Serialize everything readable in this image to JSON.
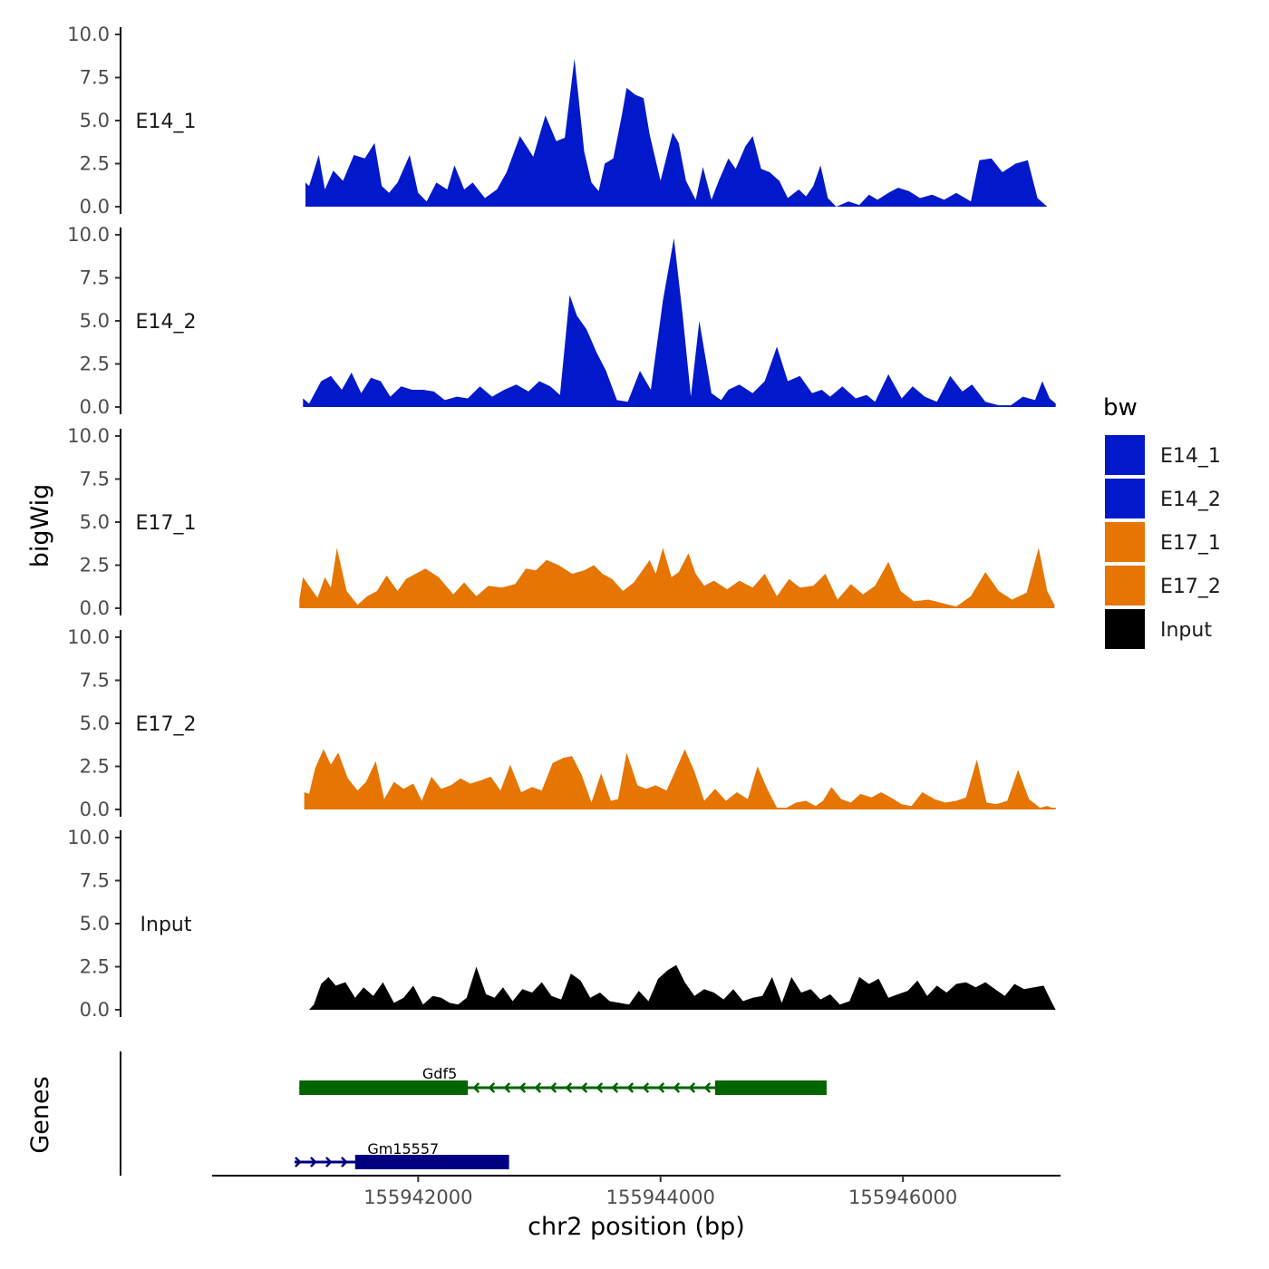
{
  "chart_data": {
    "type": "area",
    "title": "",
    "xlabel": "chr2 position (bp)",
    "ylabel": "bigWig",
    "genes_label": "Genes",
    "xlim": [
      155940300,
      155947300
    ],
    "x_ticks": [
      155942000,
      155944000,
      155946000
    ],
    "x_tick_labels": [
      "155942000",
      "155944000",
      "155946000"
    ],
    "ylim": [
      0,
      10
    ],
    "y_ticks": [
      0,
      2.5,
      5,
      7.5,
      10
    ],
    "y_tick_labels": [
      "0.0",
      "2.5",
      "5.0",
      "7.5",
      "10.0"
    ],
    "legend": {
      "title": "bw",
      "position": "right",
      "entries": [
        {
          "label": "E14_1",
          "color": "#0219CB"
        },
        {
          "label": "E14_2",
          "color": "#0219CB"
        },
        {
          "label": "E17_1",
          "color": "#E67502"
        },
        {
          "label": "E17_2",
          "color": "#E67502"
        },
        {
          "label": "Input",
          "color": "#000000"
        }
      ]
    },
    "series": [
      {
        "name": "E14_1",
        "color": "#0219CB",
        "x": [
          155941070,
          155941100,
          155941180,
          155941230,
          155941300,
          155941380,
          155941470,
          155941560,
          155941640,
          155941700,
          155941760,
          155941830,
          155941930,
          155942000,
          155942070,
          155942150,
          155942240,
          155942300,
          155942380,
          155942450,
          155942550,
          155942650,
          155942730,
          155942840,
          155942950,
          155943050,
          155943140,
          155943210,
          155943290,
          155943370,
          155943430,
          155943490,
          155943540,
          155943610,
          155943680,
          155943720,
          155943790,
          155943860,
          155943910,
          155944000,
          155944100,
          155944150,
          155944210,
          155944290,
          155944350,
          155944420,
          155944480,
          155944560,
          155944620,
          155944700,
          155944760,
          155944830,
          155944900,
          155944980,
          155945050,
          155945140,
          155945200,
          155945260,
          155945320,
          155945380,
          155945450,
          155945550,
          155945640,
          155945720,
          155945790,
          155945880,
          155945960,
          155946050,
          155946140,
          155946240,
          155946340,
          155946440,
          155946560,
          155946630,
          155946730,
          155946820,
          155946930,
          155947030,
          155947110,
          155947190,
          155947230,
          155947260
        ],
        "values": [
          1.4,
          1.2,
          3.0,
          1.0,
          2.1,
          1.5,
          3.0,
          2.8,
          3.7,
          1.2,
          0.8,
          1.4,
          3.0,
          0.8,
          0.3,
          1.4,
          1.0,
          2.4,
          1.0,
          1.4,
          0.5,
          1.0,
          2.0,
          4.1,
          2.9,
          5.3,
          3.8,
          4.0,
          8.6,
          3.2,
          1.4,
          0.9,
          2.5,
          2.8,
          5.3,
          6.9,
          6.5,
          6.3,
          4.2,
          1.5,
          4.3,
          3.7,
          1.5,
          0.4,
          2.3,
          0.4,
          1.5,
          2.8,
          2.2,
          3.5,
          4.1,
          2.2,
          2.0,
          1.5,
          0.5,
          1.0,
          0.6,
          1.2,
          2.4,
          0.5,
          0.0,
          0.3,
          0.1,
          0.7,
          0.4,
          0.8,
          1.1,
          0.9,
          0.5,
          0.7,
          0.4,
          0.8,
          0.3,
          2.7,
          2.8,
          2.0,
          2.5,
          2.7,
          0.5,
          0.0,
          0.0,
          0.0
        ]
      },
      {
        "name": "E14_2",
        "color": "#0219CB",
        "x": [
          155941050,
          155941100,
          155941200,
          155941280,
          155941370,
          155941450,
          155941530,
          155941610,
          155941690,
          155941770,
          155941860,
          155941950,
          155942040,
          155942130,
          155942220,
          155942320,
          155942410,
          155942510,
          155942610,
          155942710,
          155942810,
          155942910,
          155943000,
          155943090,
          155943170,
          155943250,
          155943310,
          155943390,
          155943470,
          155943550,
          155943640,
          155943730,
          155943830,
          155943920,
          155944020,
          155944110,
          155944180,
          155944250,
          155944320,
          155944420,
          155944500,
          155944560,
          155944650,
          155944760,
          155944860,
          155944960,
          155945050,
          155945150,
          155945250,
          155945330,
          155945400,
          155945500,
          155945610,
          155945700,
          155945770,
          155945880,
          155945990,
          155946080,
          155946180,
          155946280,
          155946390,
          155946490,
          155946570,
          155946680,
          155946790,
          155946890,
          155946990,
          155947090,
          155947150,
          155947210,
          155947260
        ],
        "values": [
          0.5,
          0.2,
          1.5,
          1.8,
          1.0,
          2.0,
          0.8,
          1.7,
          1.5,
          0.6,
          1.2,
          1.0,
          1.0,
          0.9,
          0.4,
          0.6,
          0.5,
          1.2,
          0.6,
          1.0,
          1.3,
          0.9,
          1.5,
          1.2,
          0.7,
          6.5,
          5.3,
          4.5,
          3.2,
          2.1,
          0.4,
          0.3,
          2.1,
          1.0,
          6.2,
          9.8,
          5.5,
          0.6,
          5.0,
          0.8,
          0.4,
          1.0,
          1.3,
          0.8,
          1.5,
          3.5,
          1.5,
          1.8,
          0.8,
          1.0,
          0.6,
          1.2,
          0.5,
          0.7,
          0.3,
          1.9,
          0.5,
          1.2,
          0.6,
          0.3,
          1.8,
          0.9,
          1.3,
          0.3,
          0.1,
          0.1,
          0.6,
          0.4,
          1.5,
          0.5,
          0.2
        ]
      },
      {
        "name": "E17_1",
        "color": "#E67502",
        "x": [
          155941020,
          155941050,
          155941110,
          155941170,
          155941230,
          155941280,
          155941330,
          155941410,
          155941500,
          155941580,
          155941660,
          155941740,
          155941830,
          155941900,
          155941980,
          155942060,
          155942170,
          155942290,
          155942380,
          155942480,
          155942580,
          155942690,
          155942800,
          155942890,
          155942970,
          155943060,
          155943160,
          155943270,
          155943370,
          155943450,
          155943520,
          155943600,
          155943690,
          155943780,
          155943850,
          155943910,
          155943960,
          155944020,
          155944090,
          155944150,
          155944230,
          155944290,
          155944360,
          155944440,
          155944550,
          155944650,
          155944760,
          155944860,
          155944960,
          155945060,
          155945150,
          155945260,
          155945360,
          155945460,
          155945570,
          155945670,
          155945770,
          155945880,
          155945980,
          155946090,
          155946210,
          155946320,
          155946440,
          155946560,
          155946680,
          155946790,
          155946900,
          155947020,
          155947120,
          155947190,
          155947250
        ],
        "values": [
          0.5,
          1.8,
          1.2,
          0.6,
          1.8,
          1.2,
          3.5,
          1.0,
          0.2,
          0.7,
          1.0,
          1.9,
          1.0,
          1.7,
          2.0,
          2.3,
          1.8,
          0.8,
          1.5,
          0.7,
          1.3,
          1.2,
          1.4,
          2.3,
          2.2,
          2.8,
          2.5,
          2.0,
          2.2,
          2.5,
          2.0,
          1.7,
          1.0,
          1.5,
          2.2,
          2.8,
          2.0,
          3.5,
          1.8,
          2.1,
          3.2,
          2.0,
          1.3,
          1.6,
          1.1,
          1.6,
          1.2,
          2.0,
          0.7,
          1.7,
          1.2,
          1.3,
          2.0,
          0.5,
          1.4,
          0.8,
          1.3,
          2.7,
          1.0,
          0.4,
          0.5,
          0.3,
          0.1,
          0.7,
          2.1,
          1.0,
          0.5,
          0.9,
          3.5,
          1.0,
          0.2
        ]
      },
      {
        "name": "E17_2",
        "color": "#E67502",
        "x": [
          155941060,
          155941100,
          155941150,
          155941220,
          155941280,
          155941340,
          155941420,
          155941500,
          155941570,
          155941650,
          155941720,
          155941800,
          155941880,
          155941960,
          155942030,
          155942110,
          155942190,
          155942270,
          155942350,
          155942430,
          155942520,
          155942600,
          155942680,
          155942760,
          155942850,
          155942940,
          155943020,
          155943110,
          155943200,
          155943270,
          155943350,
          155943430,
          155943510,
          155943590,
          155943650,
          155943720,
          155943810,
          155943880,
          155943960,
          155944050,
          155944120,
          155944200,
          155944280,
          155944360,
          155944450,
          155944540,
          155944630,
          155944720,
          155944800,
          155944880,
          155944960,
          155945040,
          155945120,
          155945200,
          155945280,
          155945340,
          155945410,
          155945490,
          155945570,
          155945650,
          155945740,
          155945820,
          155945900,
          155945990,
          155946070,
          155946160,
          155946260,
          155946350,
          155946440,
          155946520,
          155946610,
          155946690,
          155946770,
          155946860,
          155946950,
          155947040,
          155947130,
          155947190,
          155947230,
          155947260
        ],
        "values": [
          1.0,
          0.9,
          2.4,
          3.5,
          2.6,
          3.3,
          1.8,
          1.1,
          1.6,
          2.8,
          0.6,
          1.6,
          1.2,
          1.5,
          0.5,
          1.9,
          1.2,
          1.4,
          1.8,
          1.5,
          1.7,
          1.9,
          1.1,
          2.6,
          1.0,
          1.3,
          1.1,
          2.7,
          3.0,
          3.1,
          2.0,
          0.4,
          2.1,
          0.5,
          0.6,
          3.3,
          1.4,
          1.2,
          1.4,
          1.1,
          2.2,
          3.5,
          2.2,
          0.5,
          1.2,
          0.5,
          1.0,
          0.6,
          2.5,
          1.2,
          0.1,
          0.1,
          0.4,
          0.5,
          0.2,
          0.5,
          1.3,
          0.6,
          0.4,
          0.9,
          0.7,
          1.0,
          0.7,
          0.3,
          0.2,
          1.0,
          0.6,
          0.4,
          0.5,
          0.7,
          2.9,
          0.4,
          0.3,
          0.5,
          2.3,
          0.6,
          0.1,
          0.2,
          0.1,
          0.1
        ]
      },
      {
        "name": "Input",
        "color": "#000000",
        "x": [
          155941100,
          155941140,
          155941200,
          155941260,
          155941320,
          155941400,
          155941480,
          155941550,
          155941630,
          155941710,
          155941800,
          155941880,
          155941960,
          155942040,
          155942120,
          155942190,
          155942260,
          155942330,
          155942400,
          155942480,
          155942560,
          155942630,
          155942700,
          155942780,
          155942860,
          155942940,
          155943020,
          155943100,
          155943180,
          155943260,
          155943340,
          155943420,
          155943500,
          155943580,
          155943660,
          155943740,
          155943820,
          155943900,
          155943980,
          155944060,
          155944130,
          155944200,
          155944280,
          155944360,
          155944440,
          155944520,
          155944600,
          155944680,
          155944760,
          155944840,
          155944920,
          155945000,
          155945080,
          155945160,
          155945240,
          155945320,
          155945400,
          155945480,
          155945560,
          155945640,
          155945720,
          155945800,
          155945880,
          155945960,
          155946040,
          155946120,
          155946200,
          155946280,
          155946360,
          155946440,
          155946520,
          155946600,
          155946680,
          155946760,
          155946840,
          155946920,
          155947000,
          155947080,
          155947160,
          155947230,
          155947260
        ],
        "values": [
          0.0,
          0.3,
          1.5,
          1.9,
          1.4,
          1.6,
          0.7,
          1.3,
          0.8,
          1.6,
          0.4,
          0.7,
          1.4,
          0.3,
          0.8,
          0.7,
          0.4,
          0.3,
          0.7,
          2.5,
          0.9,
          0.7,
          1.3,
          0.5,
          1.2,
          1.0,
          1.6,
          0.8,
          0.6,
          2.1,
          1.7,
          0.7,
          1.0,
          0.5,
          0.4,
          0.3,
          1.1,
          0.5,
          1.8,
          2.3,
          2.6,
          1.6,
          0.8,
          1.2,
          1.0,
          0.6,
          1.2,
          0.5,
          0.7,
          0.8,
          1.9,
          0.4,
          1.9,
          1.0,
          1.2,
          0.6,
          0.9,
          0.3,
          0.5,
          1.9,
          1.5,
          1.8,
          0.7,
          0.9,
          1.1,
          1.7,
          0.8,
          1.4,
          1.0,
          1.5,
          1.6,
          1.3,
          1.6,
          1.2,
          0.8,
          1.5,
          1.2,
          1.3,
          1.4,
          0.4,
          0.0
        ]
      }
    ],
    "genes": [
      {
        "name": "Gdf5",
        "strand": "-",
        "color": "#006400",
        "start": 155941020,
        "end": 155945370,
        "exons": [
          [
            155941020,
            155942410
          ],
          [
            155944450,
            155945370
          ]
        ]
      },
      {
        "name": "Gm15557",
        "strand": "+",
        "color": "#000080",
        "start": 155940980,
        "end": 155942750,
        "exons": [
          [
            155941480,
            155942750
          ]
        ]
      }
    ]
  }
}
